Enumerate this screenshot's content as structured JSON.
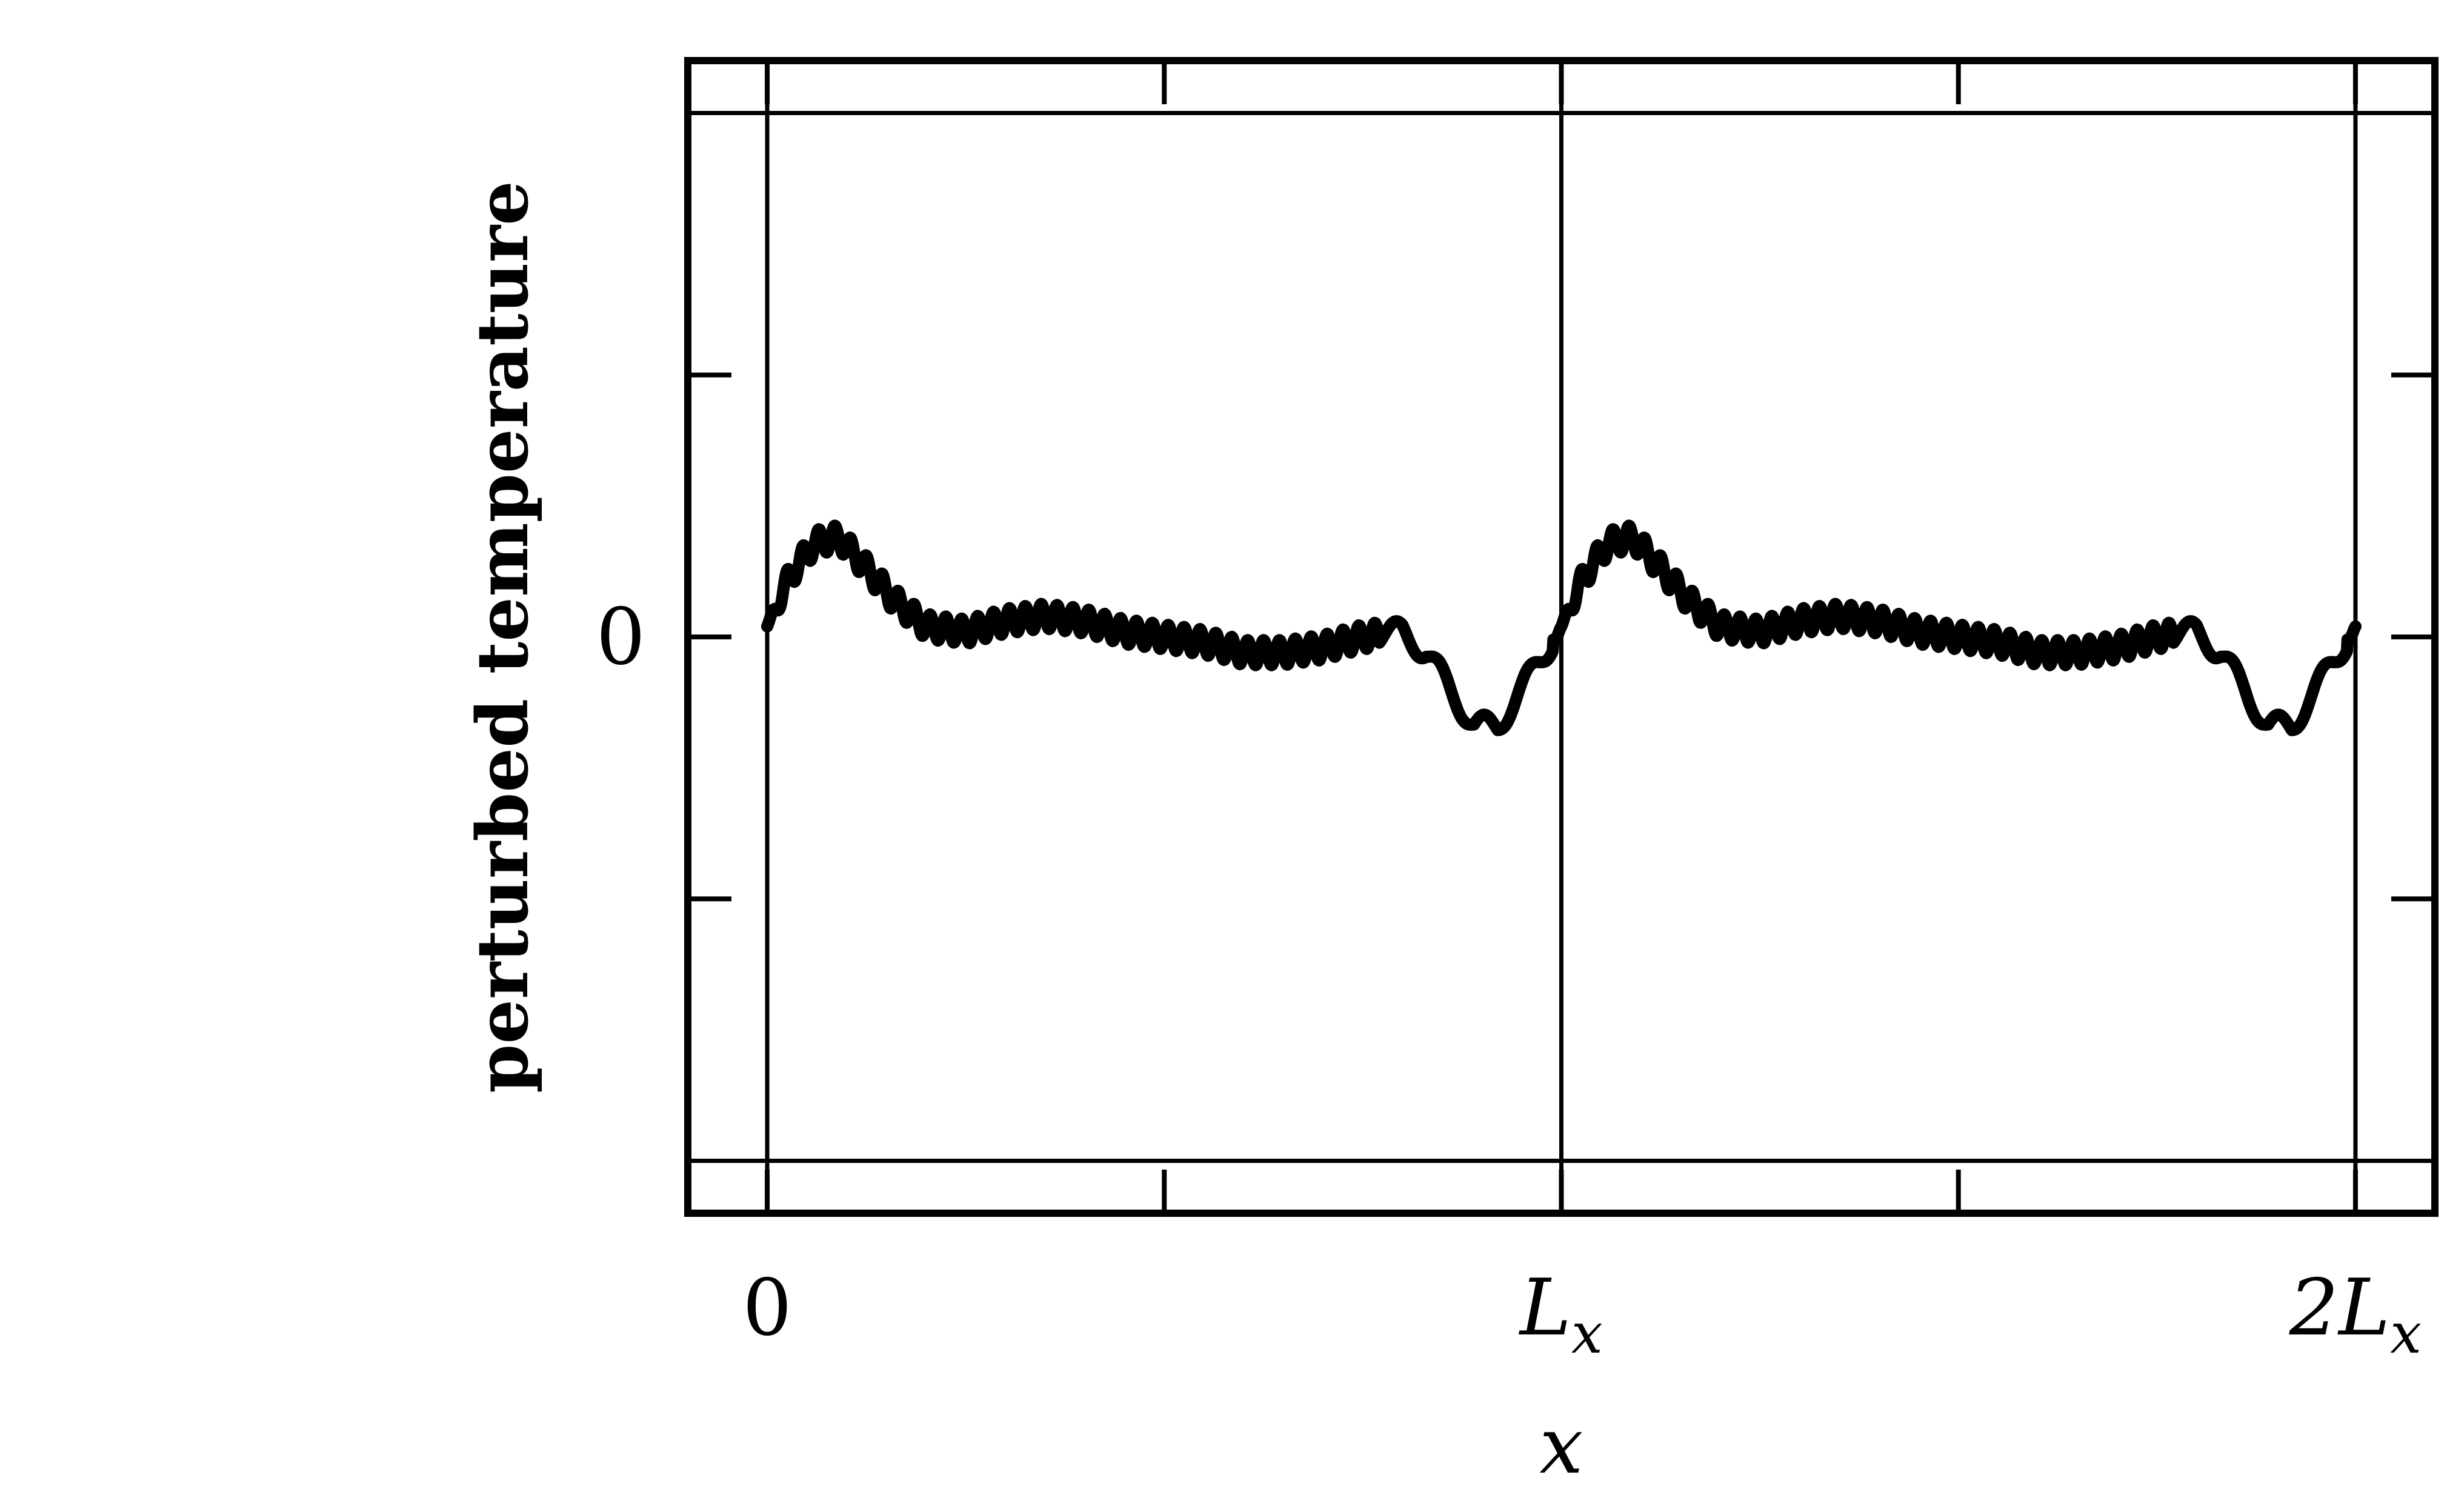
{
  "chart_data": {
    "type": "line",
    "title": "",
    "xlabel": "x",
    "ylabel": "perturbed temperature",
    "xlim": [
      -0.1,
      2.1
    ],
    "ylim": [
      -1.1,
      1.1
    ],
    "period": 1,
    "x_ticks": [
      {
        "value": 0,
        "main": "0",
        "sub": ""
      },
      {
        "value": 1,
        "main": "L",
        "sub": "x"
      },
      {
        "value": 2,
        "main": "2L",
        "sub": "x"
      }
    ],
    "x_minor_ticks": [
      0.5,
      1.5
    ],
    "y_ticks": [
      {
        "value": 0,
        "label": "0"
      }
    ],
    "y_minor_ticks": [
      -0.5,
      0.5
    ],
    "vertical_lines": [
      0,
      1,
      2
    ],
    "horizontal_lines": [
      -1,
      1
    ],
    "grid": false,
    "series": [
      {
        "name": "",
        "color": "#000000",
        "smooth": {
          "x": [
            0.0,
            0.03,
            0.06,
            0.09,
            0.12,
            0.16,
            0.2,
            0.25,
            0.3,
            0.35,
            0.4,
            0.45,
            0.5,
            0.55,
            0.6,
            0.65,
            0.7,
            0.75,
            0.8,
            0.83,
            0.86,
            0.89,
            0.92,
            0.95,
            0.98,
            1.0
          ],
          "y": [
            0.02,
            0.12,
            0.18,
            0.19,
            0.14,
            0.07,
            0.02,
            0.01,
            0.03,
            0.04,
            0.03,
            0.01,
            0.0,
            -0.01,
            -0.03,
            -0.03,
            -0.02,
            0.0,
            0.01,
            -0.03,
            -0.1,
            -0.17,
            -0.17,
            -0.1,
            -0.03,
            0.02
          ]
        },
        "ripple": {
          "amplitude": 0.024,
          "cycles_per_period": 50,
          "gaps": [
            [
              0.77,
              0.99
            ]
          ]
        }
      }
    ]
  }
}
